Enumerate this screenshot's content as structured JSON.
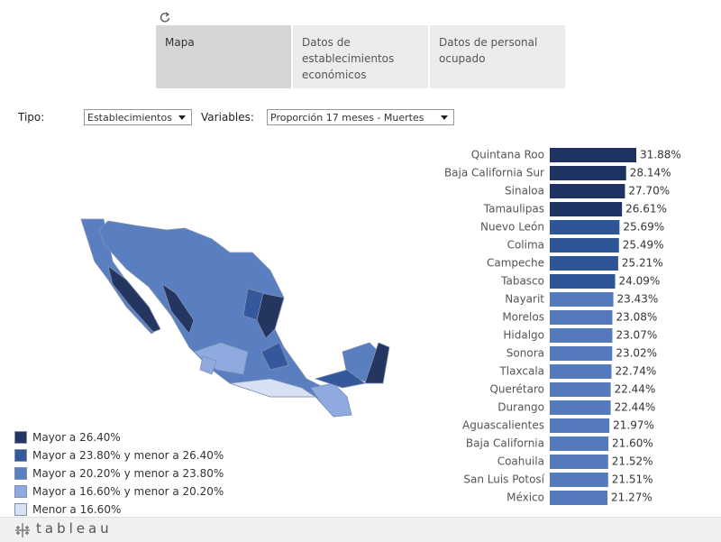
{
  "tabs": [
    "Mapa",
    "Datos de establecimientos económicos",
    "Datos de personal ocupado"
  ],
  "filters": {
    "type_label": "Tipo:",
    "type_value": "Establecimientos",
    "variable_label": "Variables:",
    "variable_value": "Proporción 17 meses - Muertes"
  },
  "legend": [
    {
      "label": "Mayor a 26.40%",
      "color": "#24365f"
    },
    {
      "label": "Mayor a 23.80% y menor a 26.40%",
      "color": "#34589b"
    },
    {
      "label": "Mayor a 20.20% y menor a 23.80%",
      "color": "#5a7fc0"
    },
    {
      "label": "Mayor a 16.60% y menor a 20.20%",
      "color": "#8eaade"
    },
    {
      "label": "Menor a 16.60%",
      "color": "#d8e0f3"
    }
  ],
  "brand": "tableau",
  "chart_data": {
    "type": "bar",
    "orientation": "horizontal",
    "categories": [
      "Quintana Roo",
      "Baja California Sur",
      "Sinaloa",
      "Tamaulipas",
      "Nuevo León",
      "Colima",
      "Campeche",
      "Tabasco",
      "Nayarit",
      "Morelos",
      "Hidalgo",
      "Sonora",
      "Tlaxcala",
      "Querétaro",
      "Durango",
      "Aguascalientes",
      "Baja California",
      "Coahuila",
      "San Luis Potosí",
      "México"
    ],
    "values": [
      31.88,
      28.14,
      27.7,
      26.61,
      25.69,
      25.49,
      25.21,
      24.09,
      23.43,
      23.08,
      23.07,
      23.02,
      22.74,
      22.44,
      22.44,
      21.97,
      21.6,
      21.52,
      21.51,
      21.27
    ],
    "value_labels": [
      "31.88%",
      "28.14%",
      "27.70%",
      "26.61%",
      "25.69%",
      "25.49%",
      "25.21%",
      "24.09%",
      "23.43%",
      "23.08%",
      "23.07%",
      "23.02%",
      "22.74%",
      "22.44%",
      "22.44%",
      "21.97%",
      "21.60%",
      "21.52%",
      "21.51%",
      "21.27%"
    ],
    "colors": [
      "#1f3363",
      "#1f3363",
      "#1f3363",
      "#1f3363",
      "#2e5597",
      "#2e5597",
      "#2e5597",
      "#2e5597",
      "#5479bd",
      "#5479bd",
      "#5479bd",
      "#5479bd",
      "#5479bd",
      "#5479bd",
      "#5479bd",
      "#5479bd",
      "#5479bd",
      "#5479bd",
      "#5479bd",
      "#5479bd"
    ]
  }
}
